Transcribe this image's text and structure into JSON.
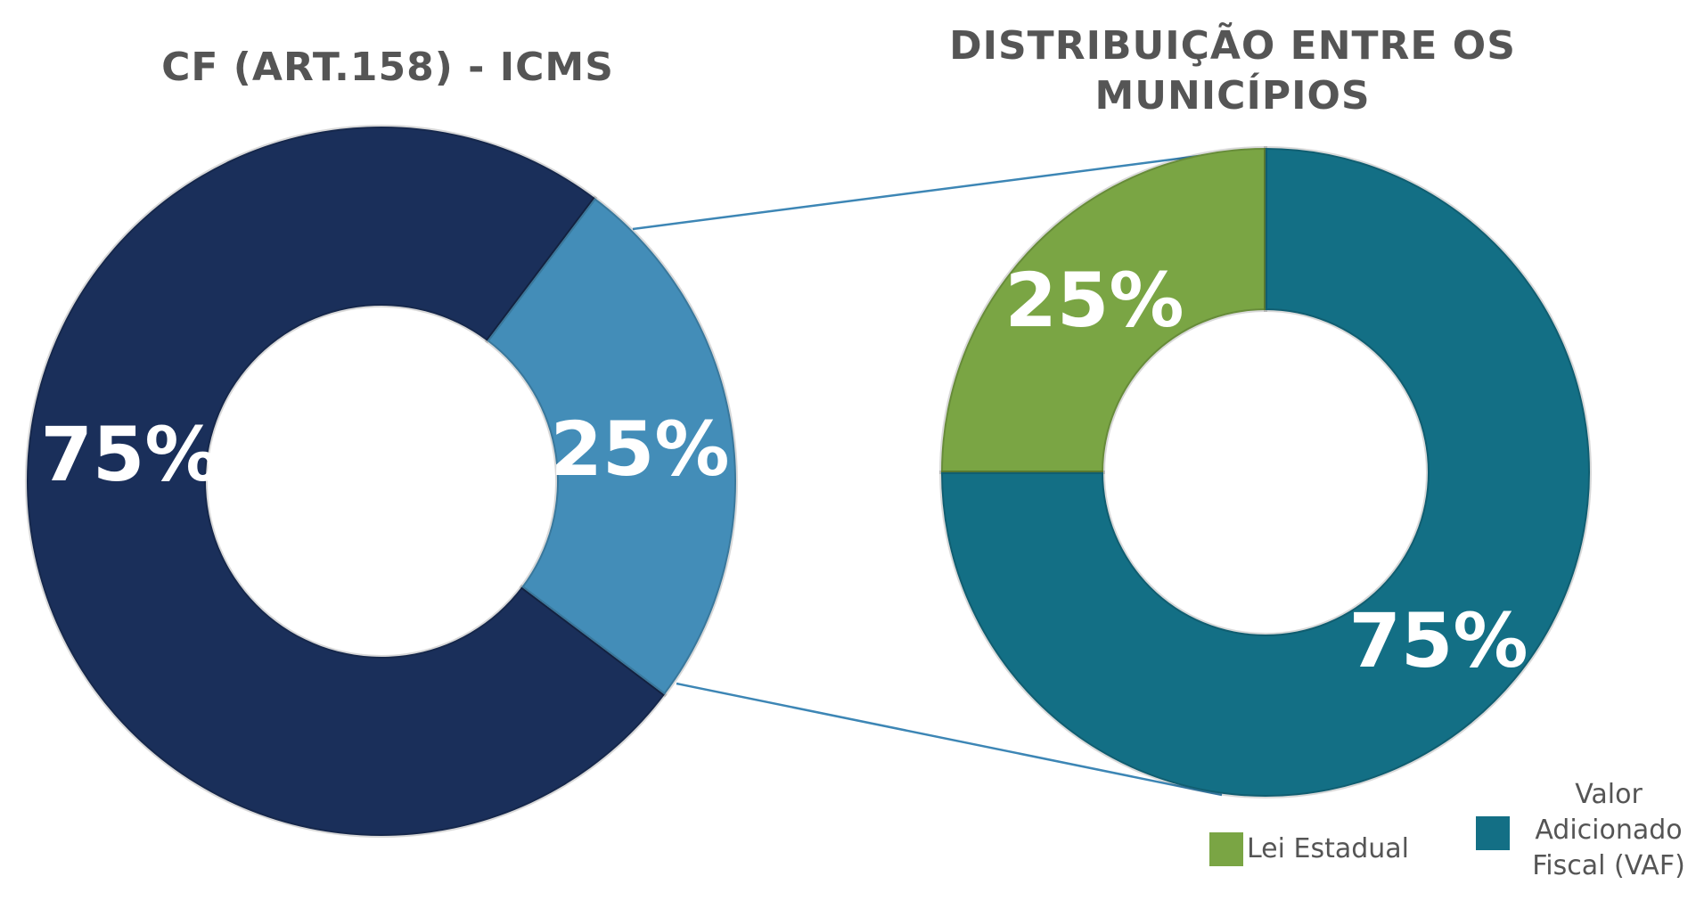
{
  "chart_data": [
    {
      "type": "pie",
      "donut": true,
      "title": "CF (ART.158) - ICMS",
      "categories": [
        "75%",
        "25%"
      ],
      "values": [
        75,
        25
      ],
      "value_labels": [
        "75%",
        "25%"
      ],
      "colors": [
        "#1a2f5a",
        "#438db8"
      ]
    },
    {
      "type": "pie",
      "donut": true,
      "title": "DISTRIBUIÇÃO ENTRE OS MUNICÍPIOS",
      "categories": [
        "Lei Estadual",
        "Valor Adicionado Fiscal (VAF)"
      ],
      "values": [
        25,
        75
      ],
      "value_labels": [
        "25%",
        "75%"
      ],
      "colors": [
        "#7aa544",
        "#136f85"
      ],
      "legend": "bottom-right"
    }
  ]
}
